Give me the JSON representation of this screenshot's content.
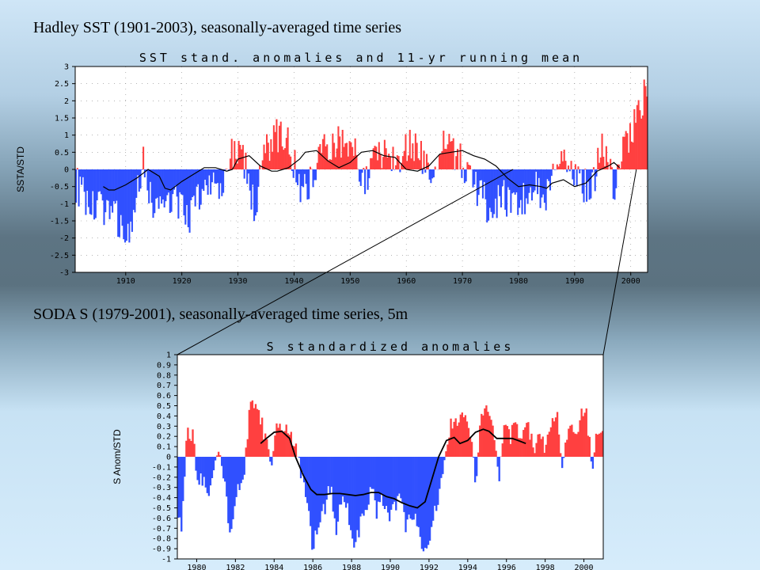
{
  "captions": {
    "top": "Hadley SST (1901-2003), seasonally-averaged time series",
    "bottom": "SODA S (1979-2001), seasonally-averaged time series, 5m"
  },
  "colors": {
    "positive": "#ff4040",
    "negative": "#3050ff",
    "line": "#000000",
    "plot_bg": "#ffffff"
  },
  "chart_data": [
    {
      "type": "bar",
      "title": "SST stand. anomalies and 11-yr running mean",
      "ylabel": "SSTA/STD",
      "xlabel": "",
      "xlim": [
        1901,
        2003
      ],
      "ylim": [
        -3,
        3
      ],
      "grid": "dotted",
      "xticks": [
        1910,
        1920,
        1930,
        1940,
        1950,
        1960,
        1970,
        1980,
        1990,
        2000
      ],
      "yticks": [
        3,
        2.5,
        2,
        1.5,
        1,
        0.5,
        0,
        -0.5,
        -1,
        -1.5,
        -2,
        -2.5,
        -3
      ],
      "ytick_labels": [
        "3",
        "2.5",
        "2",
        "1.5",
        "1",
        "0.5",
        "0",
        "-0.5",
        "-1",
        "-1.5",
        "-2",
        "-2.5",
        "-3"
      ],
      "anomaly_keypoints": {
        "x": [
          1901,
          1903,
          1905,
          1907,
          1909,
          1911,
          1913,
          1915,
          1917,
          1919,
          1921,
          1923,
          1925,
          1927,
          1929,
          1931,
          1933,
          1935,
          1937,
          1939,
          1941,
          1943,
          1945,
          1947,
          1949,
          1951,
          1953,
          1955,
          1957,
          1959,
          1961,
          1963,
          1965,
          1967,
          1969,
          1971,
          1973,
          1975,
          1977,
          1979,
          1981,
          1983,
          1985,
          1987,
          1989,
          1991,
          1993,
          1995,
          1997,
          1999,
          2001,
          2003
        ],
        "y": [
          -0.4,
          -0.9,
          -1.2,
          -1.0,
          -1.6,
          -2.0,
          0.4,
          -1.3,
          -0.7,
          -0.9,
          -1.5,
          -0.8,
          -0.3,
          -0.8,
          0.6,
          0.3,
          -1.2,
          0.6,
          1.0,
          0.9,
          -0.5,
          -0.3,
          0.7,
          0.8,
          0.9,
          0.4,
          -0.4,
          0.6,
          0.5,
          0.4,
          0.9,
          0.3,
          -0.3,
          0.8,
          0.4,
          -0.2,
          -0.6,
          -1.2,
          -0.8,
          -1.0,
          -0.9,
          -0.5,
          -0.8,
          0.6,
          0.1,
          -0.4,
          -0.6,
          0.7,
          -0.5,
          0.8,
          1.4,
          2.4
        ]
      },
      "running_mean": {
        "x": [
          1906,
          1907,
          1908,
          1910,
          1912,
          1914,
          1916,
          1917,
          1918,
          1920,
          1922,
          1924,
          1926,
          1928,
          1929,
          1930,
          1932,
          1934,
          1936,
          1937,
          1938,
          1939,
          1941,
          1942,
          1944,
          1946,
          1948,
          1950,
          1952,
          1954,
          1956,
          1958,
          1960,
          1962,
          1964,
          1966,
          1968,
          1970,
          1972,
          1974,
          1976,
          1978,
          1980,
          1982,
          1984,
          1985,
          1986,
          1988,
          1990,
          1992,
          1994,
          1996,
          1997,
          1998
        ],
        "y": [
          -0.5,
          -0.6,
          -0.6,
          -0.45,
          -0.25,
          0.0,
          -0.2,
          -0.55,
          -0.6,
          -0.35,
          -0.15,
          0.05,
          0.05,
          -0.05,
          0.0,
          0.3,
          0.4,
          0.1,
          -0.05,
          -0.05,
          0.0,
          0.05,
          0.3,
          0.5,
          0.55,
          0.25,
          0.05,
          0.2,
          0.5,
          0.55,
          0.4,
          0.35,
          0.0,
          -0.05,
          0.1,
          0.45,
          0.5,
          0.55,
          0.4,
          0.3,
          0.1,
          -0.25,
          -0.5,
          -0.45,
          -0.5,
          -0.55,
          -0.4,
          -0.3,
          -0.5,
          -0.4,
          -0.05,
          0.1,
          0.2,
          0.05
        ]
      }
    },
    {
      "type": "bar",
      "title": "S standardized anomalies",
      "ylabel": "S Anom/STD",
      "xlabel": "",
      "xlim": [
        1979,
        2001
      ],
      "ylim": [
        -1,
        1
      ],
      "grid": "none",
      "xticks": [
        1980,
        1982,
        1984,
        1986,
        1988,
        1990,
        1992,
        1994,
        1996,
        1998,
        2000
      ],
      "yticks": [
        1,
        0.9,
        0.8,
        0.7,
        0.6,
        0.5,
        0.4,
        0.3,
        0.2,
        0.1,
        0,
        -0.1,
        -0.2,
        -0.3,
        -0.4,
        -0.5,
        -0.6,
        -0.7,
        -0.8,
        -0.9,
        -1
      ],
      "ytick_labels": [
        "1",
        "0.9",
        "0.8",
        "0.7",
        "0.6",
        "0.5",
        "0.4",
        "0.3",
        "0.2",
        "0.1",
        "0",
        "-0.1",
        "-0.2",
        "-0.3",
        "-0.4",
        "-0.5",
        "-0.6",
        "-0.7",
        "-0.8",
        "-0.9",
        "-1"
      ],
      "anomaly_keypoints": {
        "x": [
          1979.0,
          1979.2,
          1979.5,
          1979.8,
          1980.0,
          1980.3,
          1980.6,
          1980.9,
          1981.2,
          1981.5,
          1981.8,
          1982.1,
          1982.4,
          1982.7,
          1983.0,
          1983.3,
          1983.6,
          1983.9,
          1984.2,
          1984.5,
          1984.8,
          1985.1,
          1985.4,
          1985.7,
          1986.0,
          1986.3,
          1986.6,
          1986.9,
          1987.2,
          1987.5,
          1987.8,
          1988.1,
          1988.4,
          1988.7,
          1989.0,
          1989.3,
          1989.6,
          1989.9,
          1990.2,
          1990.5,
          1990.8,
          1991.1,
          1991.4,
          1991.7,
          1992.0,
          1992.3,
          1992.6,
          1992.9,
          1993.2,
          1993.5,
          1993.8,
          1994.1,
          1994.4,
          1994.7,
          1995.0,
          1995.3,
          1995.6,
          1995.9,
          1996.2,
          1996.5,
          1996.8,
          1997.1,
          1997.4,
          1997.7,
          1998.0,
          1998.3,
          1998.6,
          1998.9,
          1999.2,
          1999.5,
          1999.8,
          2000.1,
          2000.4,
          2000.7,
          2001.0
        ],
        "y": [
          -0.5,
          -0.7,
          0.2,
          0.25,
          -0.3,
          -0.2,
          -0.45,
          -0.1,
          0.1,
          -0.4,
          -0.8,
          -0.2,
          -0.3,
          0.45,
          0.5,
          0.4,
          0.1,
          -0.05,
          0.35,
          0.3,
          0.25,
          0.1,
          -0.2,
          -0.4,
          -0.95,
          -0.6,
          -0.5,
          -0.3,
          -0.7,
          -0.4,
          -0.5,
          -0.85,
          -0.7,
          -0.5,
          -0.3,
          -0.55,
          -0.4,
          -0.6,
          -0.5,
          -0.3,
          -0.7,
          -0.55,
          -0.6,
          -0.9,
          -0.8,
          -0.5,
          -0.3,
          0.15,
          0.35,
          0.25,
          0.45,
          0.3,
          -0.3,
          0.5,
          0.45,
          0.3,
          -0.2,
          0.35,
          0.2,
          0.3,
          0.15,
          0.35,
          0.05,
          0.25,
          0.1,
          0.35,
          0.45,
          -0.1,
          0.35,
          0.15,
          0.4,
          0.5,
          -0.1,
          0.25,
          0.35
        ]
      },
      "running_mean": {
        "x": [
          1983.3,
          1983.6,
          1984.0,
          1984.4,
          1984.8,
          1985.1,
          1985.5,
          1985.9,
          1986.2,
          1986.6,
          1987.0,
          1987.4,
          1987.8,
          1988.2,
          1988.6,
          1989.0,
          1989.4,
          1989.8,
          1990.2,
          1990.6,
          1991.0,
          1991.4,
          1991.8,
          1992.1,
          1992.5,
          1992.9,
          1993.3,
          1993.6,
          1994.0,
          1994.4,
          1994.8,
          1995.1,
          1995.5,
          1995.9,
          1996.3,
          1996.6,
          1997.0
        ],
        "y": [
          0.13,
          0.18,
          0.24,
          0.25,
          0.18,
          0.0,
          -0.18,
          -0.32,
          -0.37,
          -0.37,
          -0.36,
          -0.36,
          -0.37,
          -0.38,
          -0.37,
          -0.35,
          -0.35,
          -0.39,
          -0.41,
          -0.45,
          -0.48,
          -0.5,
          -0.44,
          -0.25,
          0.0,
          0.16,
          0.19,
          0.13,
          0.16,
          0.24,
          0.27,
          0.25,
          0.18,
          0.18,
          0.18,
          0.16,
          0.13
        ]
      }
    }
  ]
}
